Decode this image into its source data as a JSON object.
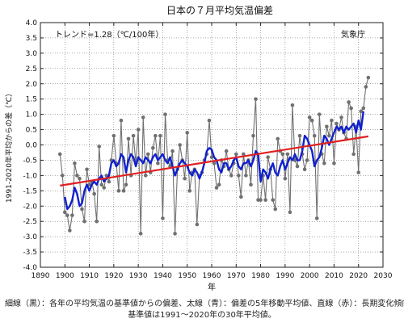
{
  "chart_data": {
    "type": "line",
    "title": "日本の７月平均気温偏差",
    "trend_label": "トレンド=1.28（℃/100年）",
    "agency": "気象庁",
    "xlabel": "年",
    "ylabel": "1991-2020年平均からの差（℃）",
    "xlim": [
      1890,
      2030
    ],
    "ylim": [
      -4.0,
      4.0
    ],
    "x_ticks": [
      1890,
      1900,
      1910,
      1920,
      1930,
      1940,
      1950,
      1960,
      1970,
      1980,
      1990,
      2000,
      2010,
      2020,
      2030
    ],
    "y_ticks": [
      -4.0,
      -3.5,
      -3.0,
      -2.5,
      -2.0,
      -1.5,
      -1.0,
      -0.5,
      0.0,
      0.5,
      1.0,
      1.5,
      2.0,
      2.5,
      3.0,
      3.5,
      4.0
    ],
    "grid": true,
    "colors": {
      "annual": "#707070",
      "moving_avg": "#1020d0",
      "trend": "#e02020"
    },
    "series": [
      {
        "kind": "annual",
        "x": [
          1898,
          1899,
          1900,
          1901,
          1902,
          1903,
          1904,
          1905,
          1906,
          1907,
          1908,
          1909,
          1910,
          1911,
          1912,
          1913,
          1914,
          1915,
          1916,
          1917,
          1918,
          1919,
          1920,
          1921,
          1922,
          1923,
          1924,
          1925,
          1926,
          1927,
          1928,
          1929,
          1930,
          1931,
          1932,
          1933,
          1934,
          1935,
          1936,
          1937,
          1938,
          1939,
          1940,
          1941,
          1942,
          1943,
          1944,
          1945,
          1946,
          1947,
          1948,
          1949,
          1950,
          1951,
          1952,
          1953,
          1954,
          1955,
          1956,
          1957,
          1958,
          1959,
          1960,
          1961,
          1962,
          1963,
          1964,
          1965,
          1966,
          1967,
          1968,
          1969,
          1970,
          1971,
          1972,
          1973,
          1974,
          1975,
          1976,
          1977,
          1978,
          1979,
          1980,
          1981,
          1982,
          1983,
          1984,
          1985,
          1986,
          1987,
          1988,
          1989,
          1990,
          1991,
          1992,
          1993,
          1994,
          1995,
          1996,
          1997,
          1998,
          1999,
          2000,
          2001,
          2002,
          2003,
          2004,
          2005,
          2006,
          2007,
          2008,
          2009,
          2010,
          2011,
          2012,
          2013,
          2014,
          2015,
          2016,
          2017,
          2018,
          2019,
          2020,
          2021,
          2022,
          2023,
          2024
        ],
        "values": [
          -0.3,
          -1.0,
          -2.2,
          -2.3,
          -2.8,
          -2.3,
          -0.6,
          -1.0,
          -1.1,
          -2.1,
          -2.5,
          -0.8,
          -1.3,
          -1.2,
          -1.6,
          -2.5,
          -0.05,
          -1.3,
          -1.4,
          -1.0,
          -1.2,
          -0.5,
          0.3,
          -0.6,
          -1.5,
          0.8,
          -1.5,
          -1.3,
          0.2,
          -1.0,
          0.3,
          -0.6,
          0.5,
          -2.9,
          0.9,
          -1.0,
          -0.3,
          -0.9,
          -0.1,
          0.3,
          -0.6,
          0.3,
          -2.4,
          1.0,
          -0.5,
          -0.7,
          -0.2,
          -2.9,
          -0.8,
          0.0,
          -0.5,
          -1.1,
          0.4,
          -1.5,
          -0.9,
          -0.8,
          -2.6,
          -1.0,
          -0.9,
          -0.5,
          -0.3,
          0.8,
          -0.4,
          -0.6,
          -1.4,
          -1.3,
          -0.5,
          -0.7,
          -0.2,
          -0.8,
          -1.0,
          -0.6,
          -0.3,
          -1.0,
          -1.7,
          -0.3,
          -1.0,
          -0.5,
          -1.3,
          0.3,
          1.5,
          -1.8,
          -1.8,
          -1.0,
          -1.8,
          -0.4,
          -0.8,
          -1.8,
          -2.1,
          0.2,
          -0.2,
          -0.3,
          -1.1,
          -0.3,
          -2.2,
          1.3,
          -0.5,
          -0.7,
          0.3,
          -0.3,
          -0.8,
          -0.5,
          0.9,
          0.8,
          0.3,
          -2.4,
          1.0,
          -0.3,
          -0.6,
          0.6,
          0.3,
          0.8,
          -0.6,
          0.7,
          0.5,
          0.9,
          0.4,
          0.2,
          1.4,
          1.2,
          -0.3,
          0.6,
          -0.9,
          1.1,
          1.2,
          1.9,
          2.2
        ]
      },
      {
        "kind": "moving_avg",
        "x": [
          1900,
          1901,
          1902,
          1903,
          1904,
          1905,
          1906,
          1907,
          1908,
          1909,
          1910,
          1911,
          1912,
          1913,
          1914,
          1915,
          1916,
          1917,
          1918,
          1919,
          1920,
          1921,
          1922,
          1923,
          1924,
          1925,
          1926,
          1927,
          1928,
          1929,
          1930,
          1931,
          1932,
          1933,
          1934,
          1935,
          1936,
          1937,
          1938,
          1939,
          1940,
          1941,
          1942,
          1943,
          1944,
          1945,
          1946,
          1947,
          1948,
          1949,
          1950,
          1951,
          1952,
          1953,
          1954,
          1955,
          1956,
          1957,
          1958,
          1959,
          1960,
          1961,
          1962,
          1963,
          1964,
          1965,
          1966,
          1967,
          1968,
          1969,
          1970,
          1971,
          1972,
          1973,
          1974,
          1975,
          1976,
          1977,
          1978,
          1979,
          1980,
          1981,
          1982,
          1983,
          1984,
          1985,
          1986,
          1987,
          1988,
          1989,
          1990,
          1991,
          1992,
          1993,
          1994,
          1995,
          1996,
          1997,
          1998,
          1999,
          2000,
          2001,
          2002,
          2003,
          2004,
          2005,
          2006,
          2007,
          2008,
          2009,
          2010,
          2011,
          2012,
          2013,
          2014,
          2015,
          2016,
          2017,
          2018,
          2019,
          2020,
          2021,
          2022
        ],
        "values": [
          -1.7,
          -2.1,
          -2.0,
          -1.8,
          -1.4,
          -1.6,
          -2.0,
          -1.9,
          -1.5,
          -1.3,
          -1.5,
          -1.3,
          -1.2,
          -1.3,
          -1.1,
          -1.0,
          -1.2,
          -1.1,
          -1.0,
          -0.6,
          -0.5,
          -0.7,
          -0.6,
          -0.3,
          -0.4,
          -0.9,
          -0.5,
          -0.3,
          -0.4,
          -0.7,
          -0.4,
          -0.5,
          -0.6,
          -0.4,
          -0.5,
          -0.6,
          -0.4,
          -0.3,
          -0.5,
          -0.4,
          -0.3,
          -0.5,
          -0.6,
          -0.4,
          -0.7,
          -1.0,
          -0.8,
          -0.6,
          -0.5,
          -0.6,
          -0.7,
          -0.9,
          -1.0,
          -0.8,
          -0.9,
          -1.1,
          -0.9,
          -0.6,
          -0.2,
          -0.1,
          -0.15,
          -0.4,
          -0.5,
          -0.8,
          -0.9,
          -0.6,
          -0.6,
          -0.8,
          -0.7,
          -0.5,
          -0.4,
          -0.7,
          -0.8,
          -0.6,
          -0.6,
          -0.5,
          -0.7,
          -0.5,
          -0.2,
          -0.3,
          -1.2,
          -0.8,
          -0.9,
          -1.1,
          -0.8,
          -0.6,
          -0.9,
          -1.0,
          -0.7,
          -0.5,
          -0.8,
          -0.6,
          -0.4,
          -0.5,
          -0.3,
          -0.5,
          -0.5,
          -0.2,
          0.3,
          0.2,
          0.0,
          -0.2,
          -0.7,
          -0.5,
          -0.4,
          -0.1,
          0.3,
          0.2,
          0.0,
          0.2,
          0.4,
          0.6,
          0.5,
          0.6,
          0.4,
          0.6,
          0.5,
          0.6,
          0.7,
          0.4,
          0.8,
          0.5,
          1.1
        ]
      },
      {
        "kind": "trend",
        "x": [
          1898,
          2024
        ],
        "values": [
          -1.33,
          0.28
        ]
      }
    ]
  },
  "caption": {
    "line1": "細線（黒）：各年の平均気温の基準値からの偏差、太線（青）：偏差の5年移動平均値、直線（赤）：長期変化傾向。",
    "line2": "基準値は1991〜2020年の30年平均値。"
  }
}
